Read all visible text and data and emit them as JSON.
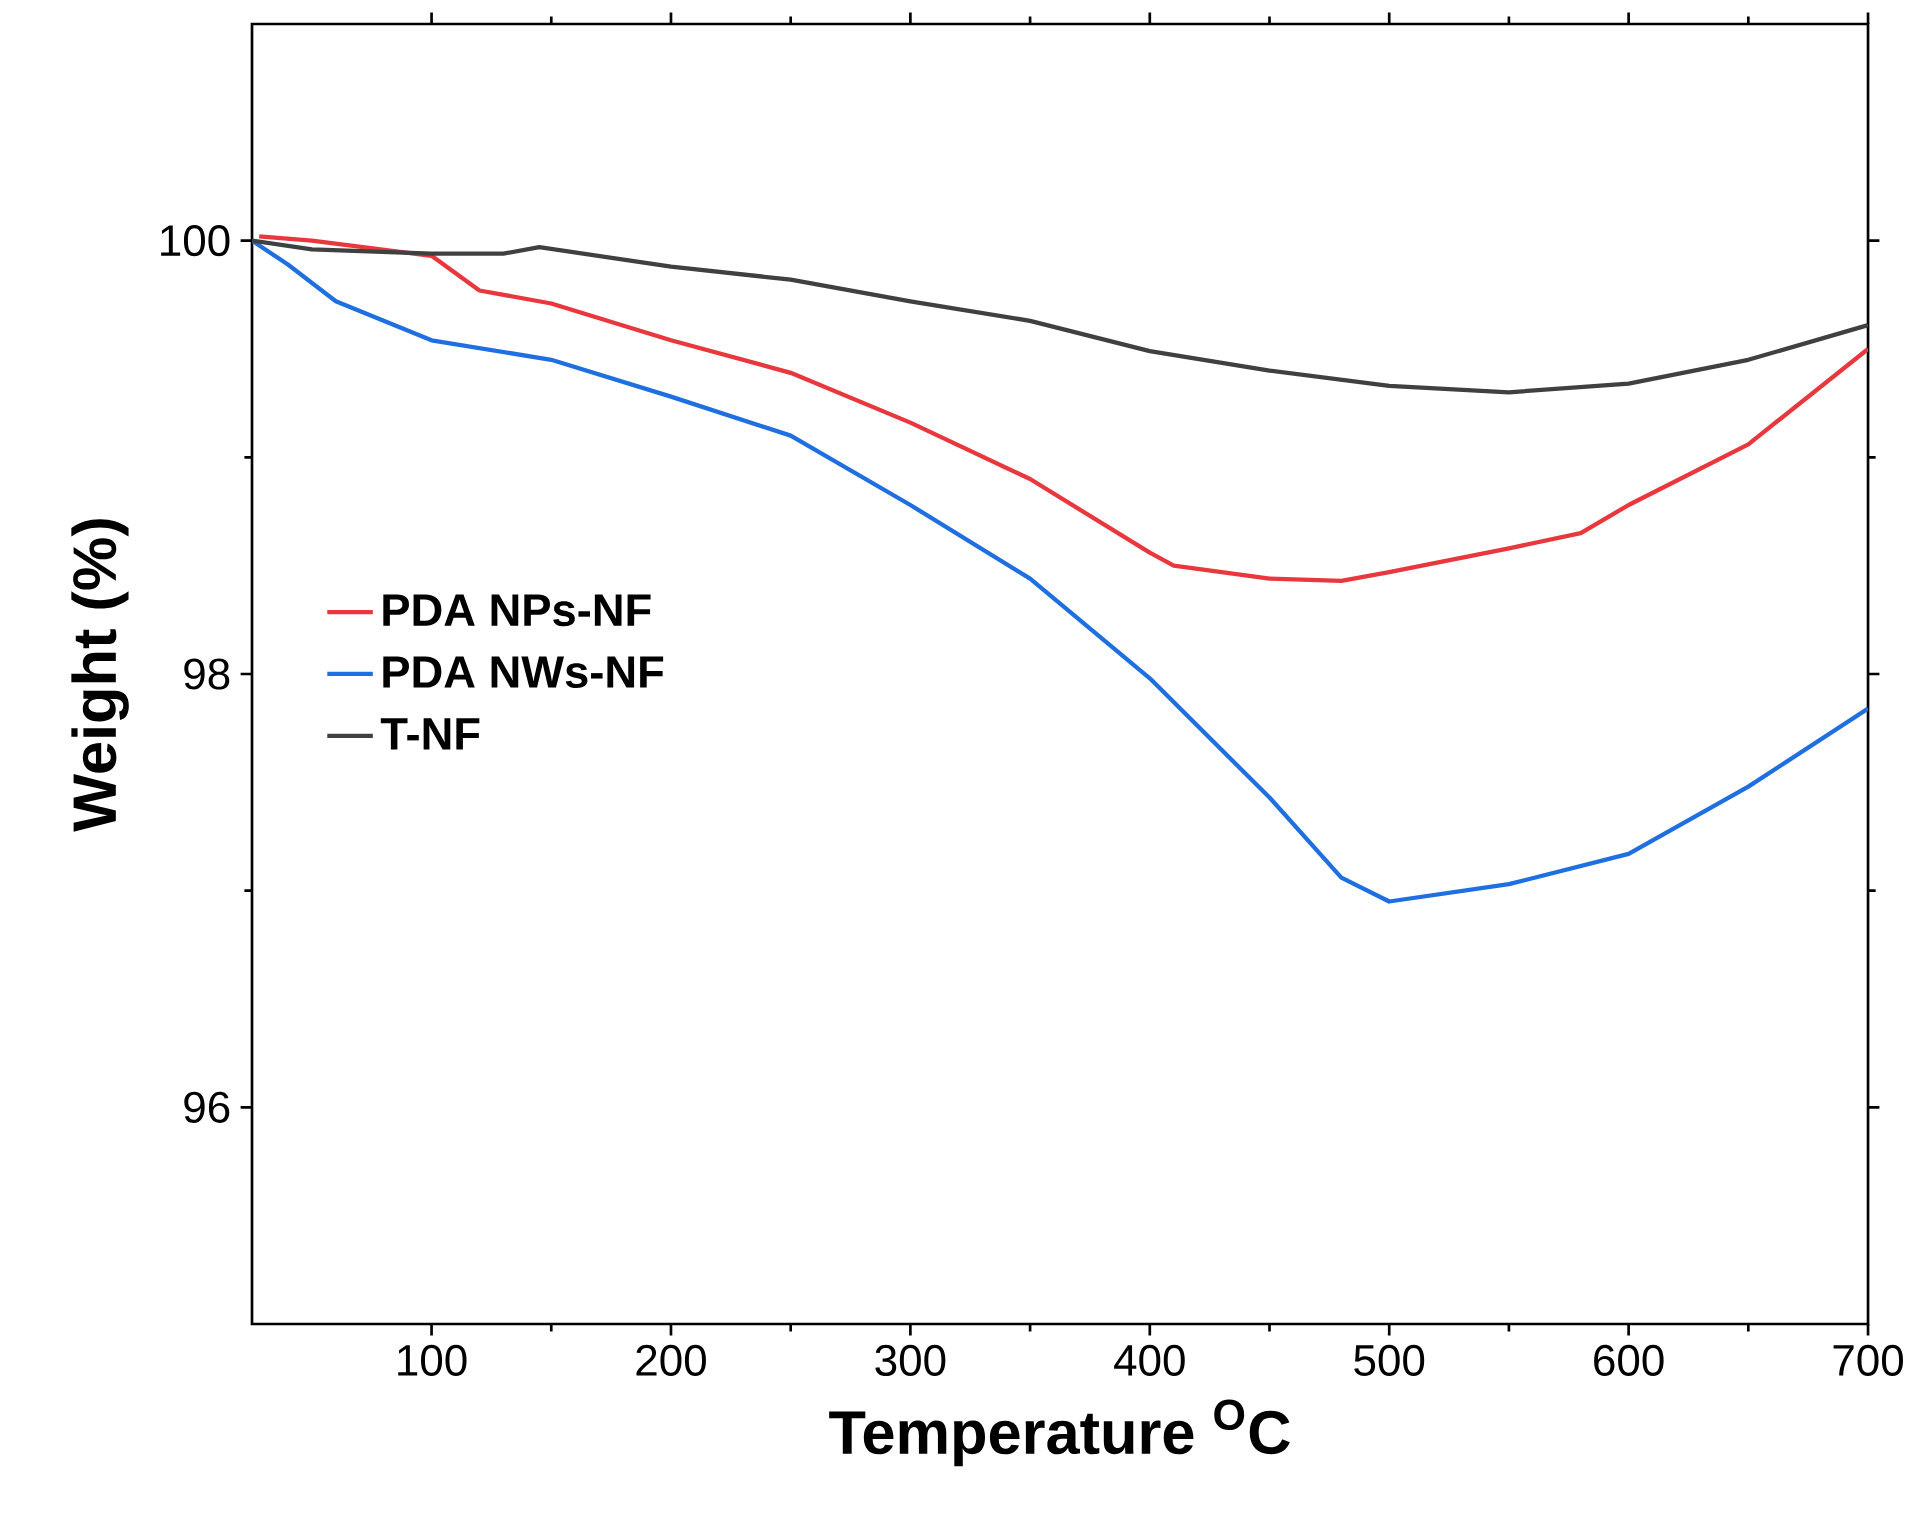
{
  "chart_data": {
    "type": "line",
    "xlabel": "Temperature $^{O}$C",
    "ylabel": "Weight (%)",
    "xlim": [
      25,
      700
    ],
    "ylim": [
      95,
      101
    ],
    "xticks": [
      100,
      200,
      300,
      400,
      500,
      600,
      700
    ],
    "yticks": [
      96,
      98,
      100
    ],
    "legend": "left",
    "grid": false,
    "marker": "none",
    "line_style": "solid",
    "series": [
      {
        "name": "PDA NPs-NF",
        "color": "#e8383d",
        "x": [
          28,
          50,
          100,
          120,
          150,
          200,
          250,
          300,
          350,
          400,
          410,
          450,
          480,
          500,
          550,
          580,
          600,
          650,
          700
        ],
        "values": [
          100.02,
          100.0,
          99.93,
          99.77,
          99.71,
          99.54,
          99.39,
          99.16,
          98.9,
          98.56,
          98.5,
          98.44,
          98.43,
          98.47,
          98.58,
          98.65,
          98.78,
          99.06,
          99.5
        ]
      },
      {
        "name": "PDA NWs-NF",
        "color": "#1f6fe0",
        "x": [
          25,
          40,
          60,
          100,
          150,
          200,
          250,
          300,
          350,
          400,
          450,
          480,
          500,
          550,
          600,
          650,
          700
        ],
        "values": [
          100.0,
          99.89,
          99.72,
          99.54,
          99.45,
          99.28,
          99.1,
          98.78,
          98.44,
          97.98,
          97.43,
          97.06,
          96.95,
          97.03,
          97.17,
          97.48,
          97.84
        ]
      },
      {
        "name": "T-NF",
        "color": "#404040",
        "x": [
          25,
          50,
          100,
          130,
          145,
          200,
          250,
          300,
          350,
          400,
          450,
          500,
          550,
          600,
          650,
          700
        ],
        "values": [
          100.0,
          99.96,
          99.94,
          99.94,
          99.97,
          99.88,
          99.82,
          99.72,
          99.63,
          99.49,
          99.4,
          99.33,
          99.3,
          99.34,
          99.45,
          99.61
        ]
      }
    ]
  }
}
